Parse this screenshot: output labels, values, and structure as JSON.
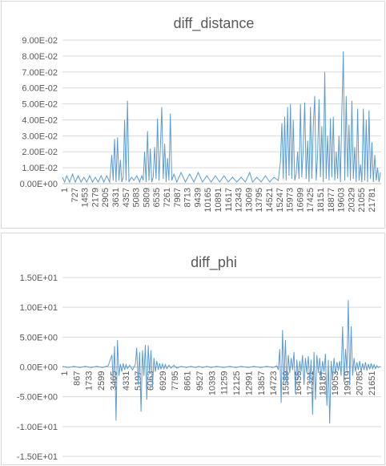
{
  "chart_data": [
    {
      "type": "line",
      "title": "diff_distance",
      "xlabel": "",
      "ylabel": "",
      "y_tick_labels": [
        "0.00E+00",
        "1.00E-02",
        "2.00E-02",
        "3.00E-02",
        "4.00E-02",
        "5.00E-02",
        "6.00E-02",
        "7.00E-02",
        "8.00E-02",
        "9.00E-02"
      ],
      "ylim": [
        0,
        0.09
      ],
      "y_step": 0.01,
      "x_tick_labels": [
        "1",
        "727",
        "1453",
        "2179",
        "2905",
        "3631",
        "4357",
        "5083",
        "5809",
        "6535",
        "7261",
        "7987",
        "8713",
        "9439",
        "10165",
        "10891",
        "11617",
        "12343",
        "13069",
        "13795",
        "14521",
        "15247",
        "15973",
        "16699",
        "17425",
        "18151",
        "18877",
        "19603",
        "20329",
        "21055",
        "21781"
      ],
      "xlim": [
        1,
        22300
      ],
      "grid": true,
      "legend": "none",
      "color": "#5b9bd5",
      "series": [
        {
          "x": [
            1,
            150,
            300,
            500,
            700,
            900,
            1100,
            1300,
            1500,
            1700,
            1900,
            2100,
            2300,
            2500,
            2700,
            2900,
            3100,
            3300,
            3450,
            3550,
            3650,
            3750,
            3850,
            3950,
            4050,
            4150,
            4250,
            4350,
            4450,
            4550,
            4650,
            4750,
            4850,
            5000,
            5200,
            5400,
            5550,
            5650,
            5750,
            5850,
            5950,
            6050,
            6150,
            6250,
            6350,
            6450,
            6550,
            6650,
            6750,
            6850,
            6950,
            7050,
            7150,
            7250,
            7350,
            7450,
            7550,
            7650,
            7800,
            8000,
            8300,
            8600,
            8900,
            9200,
            9500,
            9800,
            10100,
            10400,
            10700,
            11000,
            11300,
            11600,
            11900,
            12200,
            12500,
            12800,
            13000,
            13100,
            13300,
            13600,
            13900,
            14200,
            14500,
            14800,
            15100,
            15250,
            15350,
            15450,
            15550,
            15650,
            15750,
            15850,
            15950,
            16050,
            16150,
            16250,
            16350,
            16450,
            16550,
            16650,
            16750,
            16850,
            16950,
            17050,
            17150,
            17250,
            17350,
            17450,
            17550,
            17650,
            17750,
            17850,
            17950,
            18050,
            18150,
            18250,
            18350,
            18450,
            18550,
            18650,
            18750,
            18850,
            18950,
            19050,
            19150,
            19250,
            19350,
            19450,
            19550,
            19600,
            19650,
            19750,
            19850,
            19950,
            20050,
            20150,
            20250,
            20350,
            20450,
            20550,
            20650,
            20750,
            20850,
            20950,
            21050,
            21150,
            21250,
            21350,
            21450,
            21550,
            21650,
            21750,
            21850,
            21950,
            22050,
            22150,
            22250
          ],
          "y": [
            0.004,
            0.001,
            0.005,
            0.001,
            0.006,
            0.001,
            0.005,
            0.001,
            0.004,
            0.001,
            0.005,
            0.001,
            0.004,
            0.001,
            0.005,
            0.001,
            0.005,
            0.001,
            0.018,
            0.002,
            0.028,
            0.001,
            0.029,
            0.002,
            0.015,
            0.001,
            0.004,
            0.04,
            0.002,
            0.052,
            0.001,
            0.003,
            0.004,
            0.002,
            0.005,
            0.001,
            0.005,
            0.002,
            0.02,
            0.001,
            0.033,
            0.002,
            0.022,
            0.001,
            0.004,
            0.023,
            0.003,
            0.041,
            0.002,
            0.022,
            0.048,
            0.003,
            0.025,
            0.001,
            0.016,
            0.002,
            0.044,
            0.002,
            0.006,
            0.001,
            0.007,
            0.001,
            0.006,
            0.001,
            0.007,
            0.001,
            0.005,
            0.001,
            0.005,
            0.001,
            0.005,
            0.001,
            0.004,
            0.001,
            0.004,
            0.001,
            0.005,
            0.007,
            0.001,
            0.004,
            0.001,
            0.005,
            0.001,
            0.004,
            0.002,
            0.014,
            0.038,
            0.003,
            0.042,
            0.002,
            0.048,
            0.005,
            0.05,
            0.003,
            0.04,
            0.002,
            0.006,
            0.02,
            0.003,
            0.05,
            0.004,
            0.022,
            0.051,
            0.003,
            0.027,
            0.001,
            0.048,
            0.003,
            0.036,
            0.055,
            0.002,
            0.018,
            0.053,
            0.004,
            0.036,
            0.001,
            0.07,
            0.003,
            0.03,
            0.002,
            0.041,
            0.004,
            0.042,
            0.002,
            0.02,
            0.003,
            0.03,
            0.001,
            0.046,
            0.062,
            0.083,
            0.002,
            0.055,
            0.004,
            0.037,
            0.002,
            0.052,
            0.003,
            0.023,
            0.001,
            0.047,
            0.002,
            0.012,
            0.001,
            0.047,
            0.002,
            0.04,
            0.001,
            0.046,
            0.003,
            0.026,
            0.001,
            0.018,
            0.002,
            0.01,
            0.001,
            0.007
          ]
        }
      ]
    },
    {
      "type": "line",
      "title": "diff_phi",
      "xlabel": "",
      "ylabel": "",
      "y_tick_labels": [
        "-1.50E+01",
        "-1.00E+01",
        "-5.00E+00",
        "0.00E+00",
        "5.00E+00",
        "1.00E+01",
        "1.50E+01"
      ],
      "ylim": [
        -15,
        15
      ],
      "y_step": 5,
      "x_tick_labels": [
        "1",
        "867",
        "1733",
        "2599",
        "3465",
        "4331",
        "5197",
        "6063",
        "6929",
        "7795",
        "8661",
        "9527",
        "10393",
        "11259",
        "12125",
        "12991",
        "13857",
        "14723",
        "15589",
        "16455",
        "17321",
        "18187",
        "19053",
        "19919",
        "20785",
        "21651"
      ],
      "xlim": [
        1,
        22300
      ],
      "grid": true,
      "legend": "none",
      "color": "#5b9bd5",
      "series": [
        {
          "x": [
            1,
            400,
            800,
            1200,
            1600,
            2000,
            2400,
            2800,
            3200,
            3465,
            3550,
            3650,
            3750,
            3850,
            3950,
            4050,
            4150,
            4250,
            4350,
            4450,
            4550,
            4700,
            4900,
            5100,
            5197,
            5300,
            5400,
            5500,
            5600,
            5700,
            5800,
            5900,
            6000,
            6100,
            6200,
            6300,
            6400,
            6500,
            6600,
            6700,
            6800,
            6900,
            7000,
            7100,
            7200,
            7300,
            7450,
            7600,
            7800,
            8000,
            8300,
            8661,
            9000,
            9300,
            9527,
            9800,
            10100,
            10393,
            10800,
            11259,
            11700,
            12125,
            12500,
            12991,
            13400,
            13857,
            14300,
            14723,
            15000,
            15100,
            15200,
            15300,
            15400,
            15500,
            15600,
            15700,
            15800,
            15900,
            16000,
            16100,
            16200,
            16300,
            16400,
            16500,
            16600,
            16700,
            16800,
            16900,
            17000,
            17100,
            17200,
            17300,
            17400,
            17500,
            17600,
            17700,
            17800,
            17900,
            18000,
            18100,
            18200,
            18300,
            18400,
            18500,
            18600,
            18700,
            18800,
            18900,
            19000,
            19100,
            19200,
            19300,
            19400,
            19500,
            19600,
            19700,
            19800,
            19900,
            20000,
            20100,
            20200,
            20300,
            20400,
            20500,
            20600,
            20700,
            20800,
            20900,
            21000,
            21100,
            21200,
            21300,
            21400,
            21500,
            21600,
            21700,
            21800,
            21900,
            22000,
            22100,
            22250
          ],
          "y": [
            0.1,
            -0.1,
            0.1,
            -0.1,
            0.1,
            -0.1,
            0.1,
            -0.1,
            0.2,
            2.0,
            -2.5,
            3.5,
            -9.0,
            4.5,
            -1.5,
            0.5,
            -0.8,
            0.6,
            -0.5,
            0.4,
            -0.3,
            0.3,
            -0.5,
            0.4,
            3.2,
            -3.0,
            2.5,
            -7.5,
            2.8,
            -1.5,
            3.7,
            -5.5,
            3.6,
            -1.2,
            2.8,
            -3.5,
            1.5,
            -0.8,
            1.0,
            -0.5,
            0.6,
            -0.4,
            0.5,
            -0.3,
            0.4,
            -0.3,
            0.3,
            -0.2,
            0.3,
            -0.2,
            0.1,
            -0.1,
            0.1,
            -0.1,
            0.1,
            -0.1,
            0.1,
            -0.1,
            0.1,
            -0.1,
            0.1,
            -0.1,
            0.1,
            -0.1,
            0.1,
            -0.1,
            0.1,
            -0.1,
            0.2,
            -0.5,
            3.0,
            -6.0,
            6.2,
            -2.5,
            4.5,
            -3.0,
            2.0,
            -1.0,
            1.5,
            -0.5,
            2.5,
            -4.5,
            1.2,
            -2.0,
            1.0,
            -0.8,
            2.0,
            -3.0,
            1.5,
            -1.0,
            1.8,
            -2.5,
            1.2,
            -8.0,
            2.5,
            -5.5,
            2.0,
            -1.0,
            1.5,
            -2.0,
            1.0,
            -0.8,
            2.2,
            -6.5,
            1.2,
            -9.5,
            1.0,
            -2.0,
            1.5,
            -1.2,
            0.8,
            -0.6,
            1.0,
            -1.5,
            6.8,
            -2.5,
            3.0,
            -0.8,
            11.2,
            -3.0,
            6.8,
            -1.5,
            1.5,
            -0.8,
            0.8,
            -0.5,
            1.0,
            -0.8,
            0.6,
            -0.5,
            0.8,
            -0.6,
            0.5,
            -0.4,
            0.6,
            -0.3,
            0.4,
            -0.3,
            0.2,
            -0.1,
            0.1
          ]
        }
      ]
    }
  ]
}
